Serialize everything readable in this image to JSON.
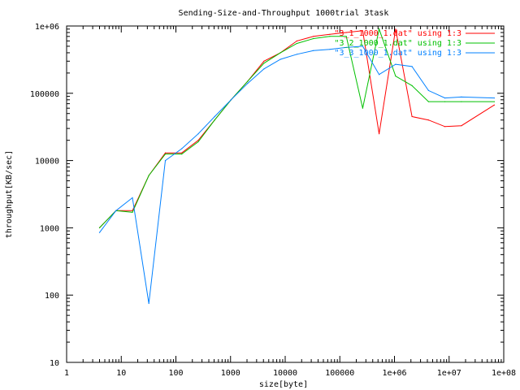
{
  "chart_data": {
    "type": "line",
    "title": "Sending-Size-and-Throughput 1000trial 3task",
    "xlabel": "size[byte]",
    "ylabel": "throughput[KB/sec]",
    "x_scale": "log",
    "y_scale": "log",
    "xlim": [
      1,
      100000000
    ],
    "ylim": [
      10,
      1000000
    ],
    "grid": false,
    "legend_position": "top-right",
    "x_ticks": [
      {
        "value": 1,
        "label": "1"
      },
      {
        "value": 10,
        "label": "10"
      },
      {
        "value": 100,
        "label": "100"
      },
      {
        "value": 1000,
        "label": "1000"
      },
      {
        "value": 10000,
        "label": "10000"
      },
      {
        "value": 100000,
        "label": "100000"
      },
      {
        "value": 1000000,
        "label": "1e+06"
      },
      {
        "value": 10000000,
        "label": "1e+07"
      },
      {
        "value": 100000000,
        "label": "1e+08"
      }
    ],
    "y_ticks": [
      {
        "value": 10,
        "label": "10"
      },
      {
        "value": 100,
        "label": "100"
      },
      {
        "value": 1000,
        "label": "1000"
      },
      {
        "value": 10000,
        "label": "10000"
      },
      {
        "value": 100000,
        "label": "100000"
      },
      {
        "value": 1000000,
        "label": "1e+06"
      }
    ],
    "series": [
      {
        "name": "\"3_1_1000_1.dat\" using 1:3",
        "color": "#ff0000",
        "x": [
          4,
          8,
          16,
          32,
          64,
          128,
          256,
          512,
          1024,
          2048,
          4096,
          8192,
          16384,
          32768,
          65536,
          131072,
          262144,
          524288,
          1048576,
          2097152,
          4194304,
          8388608,
          16777216,
          67108864
        ],
        "y": [
          1000,
          1800,
          1800,
          6000,
          13000,
          13000,
          20000,
          40000,
          80000,
          150000,
          300000,
          400000,
          600000,
          700000,
          750000,
          800000,
          850000,
          25000,
          900000,
          45000,
          40000,
          32000,
          33000,
          67000
        ]
      },
      {
        "name": "\"3_2_1000_1.dat\" using 1:3",
        "color": "#00c000",
        "x": [
          4,
          8,
          16,
          32,
          64,
          128,
          256,
          512,
          1024,
          2048,
          4096,
          8192,
          16384,
          32768,
          65536,
          131072,
          262144,
          524288,
          1048576,
          2097152,
          4194304,
          8388608,
          16777216,
          67108864
        ],
        "y": [
          1000,
          1800,
          1700,
          6000,
          12500,
          12500,
          19000,
          40000,
          80000,
          150000,
          280000,
          400000,
          550000,
          650000,
          700000,
          700000,
          60000,
          900000,
          180000,
          130000,
          75000,
          75000,
          75000,
          75000
        ]
      },
      {
        "name": "\"3_3_1000_1.dat\" using 1:3",
        "color": "#0080ff",
        "x": [
          4,
          8,
          16,
          32,
          64,
          128,
          256,
          512,
          1024,
          2048,
          4096,
          8192,
          16384,
          32768,
          65536,
          131072,
          262144,
          524288,
          1048576,
          2097152,
          4194304,
          8388608,
          16777216,
          67108864
        ],
        "y": [
          850,
          1800,
          2800,
          75,
          10000,
          15000,
          25000,
          45000,
          80000,
          140000,
          230000,
          320000,
          380000,
          430000,
          450000,
          480000,
          500000,
          190000,
          270000,
          250000,
          110000,
          85000,
          88000,
          85000
        ]
      }
    ]
  }
}
